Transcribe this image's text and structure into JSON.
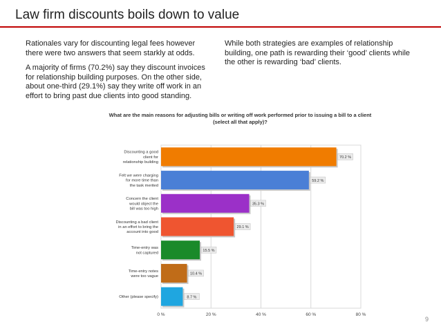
{
  "slide": {
    "title": "Law firm discounts boils down to value",
    "page_number": "9",
    "accent_color": "#c00000"
  },
  "left_column": {
    "para1": "Rationales vary for discounting legal fees however there were two answers that seem starkly at odds.",
    "para2": "A majority of firms (70.2%) say they discount invoices for relationship building purposes. On the other side, about one-third (29.1%) say they write off work in an effort to bring past due clients into good standing."
  },
  "right_column": {
    "para1": "While both strategies are examples of relationship building, one path is rewarding their ‘good’ clients while the other is rewarding ‘bad’ clients."
  },
  "chart_data": {
    "type": "bar",
    "orientation": "horizontal",
    "title": "What are the main reasons for adjusting bills or writing off work performed prior to issuing a bill to a client (select all that apply)?",
    "categories": [
      "Discounting a good client for relationship building",
      "Felt we were charging for more time than the task merited",
      "Concern the client would object the bill was too high",
      "Discounting a bad client in an effort to bring the account into good",
      "Time-entry was not captured",
      "Time-entry notes were too vague",
      "Other (please specify)"
    ],
    "category_lines": [
      [
        "Discounting a good",
        "client for",
        "relationship building"
      ],
      [
        "Felt we were charging",
        "for more time than",
        "the task merited"
      ],
      [
        "Concern the client",
        "would object the",
        "bill was too high"
      ],
      [
        "Discounting a bad client",
        "in an effort to bring the",
        "account into good"
      ],
      [
        "Time-entry was",
        "not captured"
      ],
      [
        "Time-entry notes",
        "were too vague"
      ],
      [
        "Other (please specify)"
      ]
    ],
    "values": [
      70.2,
      59.2,
      35.3,
      29.1,
      15.5,
      10.4,
      8.7
    ],
    "value_labels": [
      "70.2 %",
      "59.2 %",
      "35.3 %",
      "29.1 %",
      "15.5 %",
      "10.4 %",
      "8.7 %"
    ],
    "colors": [
      "#f07c00",
      "#4a7fd6",
      "#9b30c8",
      "#ef5530",
      "#1a8a2a",
      "#c06c18",
      "#1fa6e0"
    ],
    "xlim": [
      0,
      80
    ],
    "xticks": [
      "0 %",
      "20 %",
      "40 %",
      "60 %",
      "80 %"
    ],
    "xtick_values": [
      0,
      20,
      40,
      60,
      80
    ],
    "grid": true
  }
}
